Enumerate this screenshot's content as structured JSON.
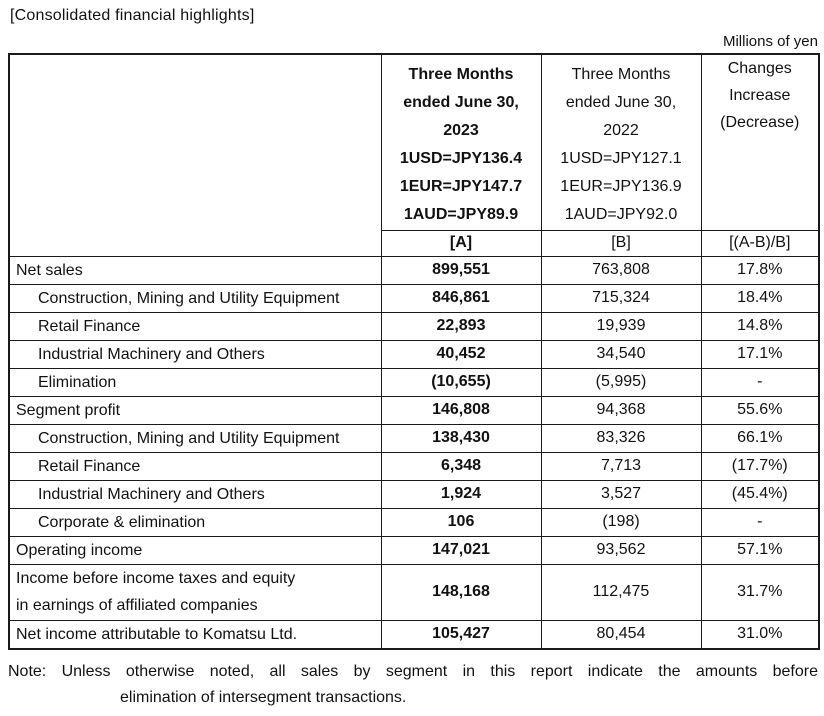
{
  "page": {
    "title": "[Consolidated financial highlights]",
    "unit_label": "Millions of yen",
    "note": {
      "line1": "Note: Unless otherwise noted, all sales by segment in this report indicate the amounts before",
      "line2": "elimination of intersegment transactions."
    }
  },
  "table": {
    "header": {
      "col_a": {
        "lines": [
          "Three Months",
          "ended June 30,",
          "2023",
          "1USD=JPY136.4",
          "1EUR=JPY147.7",
          "1AUD=JPY89.9"
        ],
        "tag": "[A]"
      },
      "col_b": {
        "lines": [
          "Three Months",
          "ended June 30,",
          "2022",
          "1USD=JPY127.1",
          "1EUR=JPY136.9",
          "1AUD=JPY92.0"
        ],
        "tag": "[B]"
      },
      "col_c": {
        "lines": [
          "Changes",
          "Increase",
          "(Decrease)"
        ],
        "tag": "[(A-B)/B]"
      }
    },
    "rows": [
      {
        "label": "Net sales",
        "a": "899,551",
        "b": "763,808",
        "change": "17.8%"
      },
      {
        "label": "Construction, Mining and Utility Equipment",
        "a": "846,861",
        "b": "715,324",
        "change": "18.4%"
      },
      {
        "label": "Retail Finance",
        "a": "22,893",
        "b": "19,939",
        "change": "14.8%"
      },
      {
        "label": "Industrial Machinery and Others",
        "a": "40,452",
        "b": "34,540",
        "change": "17.1%"
      },
      {
        "label": "Elimination",
        "a": "(10,655)",
        "b": "(5,995)",
        "change": "-"
      },
      {
        "label": "Segment profit",
        "a": "146,808",
        "b": "94,368",
        "change": "55.6%"
      },
      {
        "label": "Construction, Mining and Utility Equipment",
        "a": "138,430",
        "b": "83,326",
        "change": "66.1%"
      },
      {
        "label": "Retail Finance",
        "a": "6,348",
        "b": "7,713",
        "change": "(17.7%)"
      },
      {
        "label": "Industrial Machinery and Others",
        "a": "1,924",
        "b": "3,527",
        "change": "(45.4%)"
      },
      {
        "label": "Corporate & elimination",
        "a": "106",
        "b": "(198)",
        "change": "-"
      },
      {
        "label": "Operating income",
        "a": "147,021",
        "b": "93,562",
        "change": "57.1%"
      },
      {
        "label": "Income before income taxes and equity",
        "label2": "in earnings of affiliated companies",
        "a": "148,168",
        "b": "112,475",
        "change": "31.7%"
      },
      {
        "label": "Net income attributable to Komatsu Ltd.",
        "a": "105,427",
        "b": "80,454",
        "change": "31.0%"
      }
    ]
  }
}
